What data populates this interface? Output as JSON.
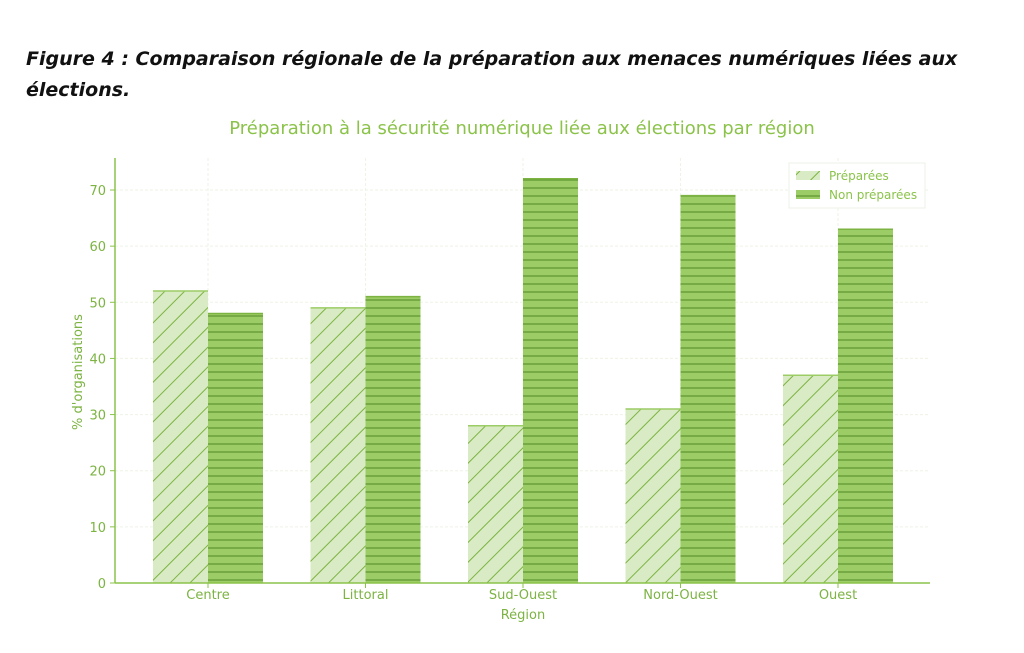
{
  "figure_caption": "Figure 4 : Comparaison régionale de la préparation aux menaces numériques liées aux élections.",
  "chart_data": {
    "type": "bar",
    "title": "Préparation à la sécurité numérique liée aux élections par région",
    "xlabel": "Région",
    "ylabel": "% d'organisations",
    "categories": [
      "Centre",
      "Littoral",
      "Sud-Ouest",
      "Nord-Ouest",
      "Ouest"
    ],
    "series": [
      {
        "name": "Préparées",
        "values": [
          52,
          49,
          28,
          31,
          37
        ],
        "color": "#d4e8bc",
        "hatch": "diagonal"
      },
      {
        "name": "Non préparées",
        "values": [
          48,
          51,
          72,
          69,
          63
        ],
        "color": "#8bc34a",
        "hatch": "horizontal"
      }
    ],
    "ylim": [
      0,
      75.7
    ],
    "yticks": [
      0,
      10,
      20,
      30,
      40,
      50,
      60,
      70
    ],
    "grid": true,
    "legend_position": "top-right",
    "accent_color": "#7cb342"
  }
}
